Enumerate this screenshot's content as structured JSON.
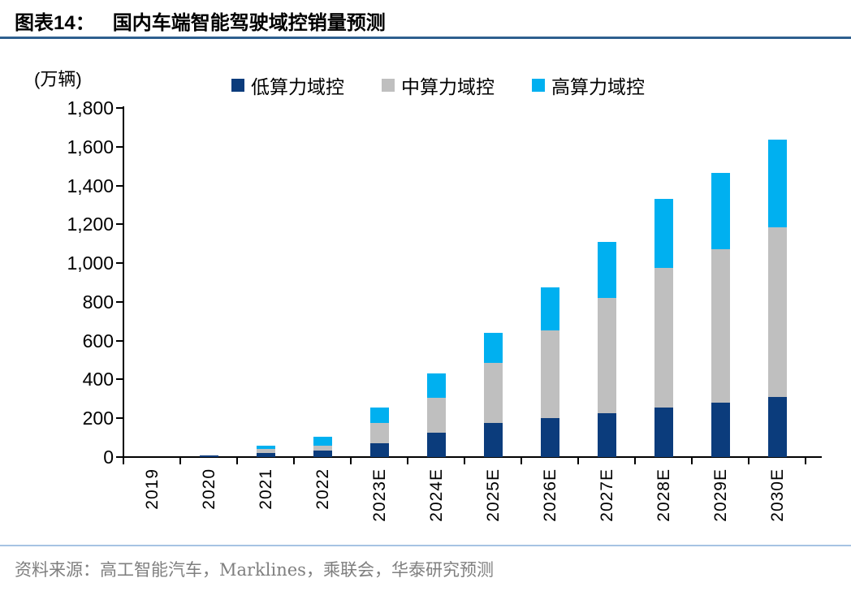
{
  "header": {
    "prefix": "图表14：",
    "title": "国内车端智能驾驶域控销量预测"
  },
  "unit_label": "(万辆)",
  "source": "资料来源：高工智能汽车，Marklines，乘联会，华泰研究预测",
  "colors": {
    "low": "#0b3c7c",
    "mid": "#bfbfbf",
    "high": "#00b0f0",
    "title_rule": "#2e5f8f",
    "footer_rule": "#a6c3e3",
    "axis": "#000000",
    "source_text": "#7f7f7f"
  },
  "chart_data": {
    "type": "bar",
    "stacked": true,
    "title": "国内车端智能驾驶域控销量预测",
    "unit": "万辆",
    "categories": [
      "2019",
      "2020",
      "2021",
      "2022",
      "2023E",
      "2024E",
      "2025E",
      "2026E",
      "2027E",
      "2028E",
      "2029E",
      "2030E"
    ],
    "series": [
      {
        "name": "低算力域控",
        "color_key": "low",
        "values": [
          0,
          8,
          22,
          32,
          70,
          125,
          175,
          200,
          225,
          255,
          280,
          310
        ]
      },
      {
        "name": "中算力域控",
        "color_key": "mid",
        "values": [
          0,
          0,
          18,
          25,
          105,
          180,
          310,
          455,
          595,
          720,
          790,
          875
        ]
      },
      {
        "name": "高算力域控",
        "color_key": "high",
        "values": [
          0,
          0,
          17,
          49,
          80,
          125,
          155,
          220,
          290,
          355,
          395,
          450
        ]
      }
    ],
    "totals": [
      0,
      8,
      57,
      106,
      255,
      430,
      640,
      875,
      1110,
      1330,
      1465,
      1635
    ],
    "ylim": [
      0,
      1800
    ],
    "ytick_step": 200,
    "ytick_labels": [
      "0",
      "200",
      "400",
      "600",
      "800",
      "1,000",
      "1,200",
      "1,400",
      "1,600",
      "1,800"
    ],
    "legend_position": "top",
    "grid": false,
    "x_label_rotation": -90
  }
}
